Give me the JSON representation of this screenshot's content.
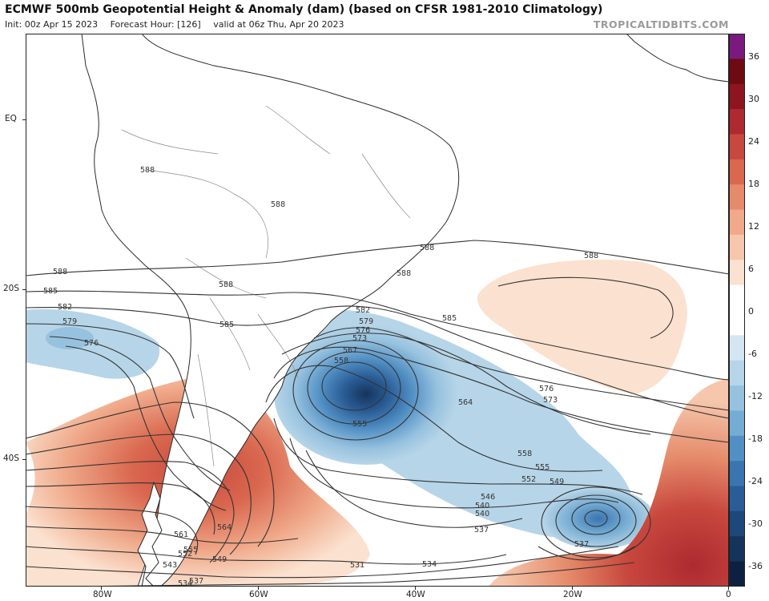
{
  "header": {
    "title": "ECMWF 500mb Geopotential Height & Anomaly (dam) (based on CFSR 1981-2010 Climatology)",
    "init": "Init: 00z Apr 15 2023",
    "forecast_hour": "Forecast Hour: [126]",
    "valid": "valid at 06z Thu, Apr 20 2023",
    "brand": "TROPICALTIDBITS.COM"
  },
  "lat_labels": [
    "EQ",
    "20S",
    "40S"
  ],
  "lon_labels": [
    "80W",
    "60W",
    "40W",
    "20W",
    "0"
  ],
  "colorbar": {
    "labels": [
      "36",
      "30",
      "24",
      "18",
      "12",
      "6",
      "0",
      "-6",
      "-12",
      "-18",
      "-24",
      "-30",
      "-36"
    ],
    "colors": [
      "#7b1a7e",
      "#6e0a12",
      "#8e1420",
      "#ad2a30",
      "#c8483e",
      "#d9684f",
      "#e58a6a",
      "#f0a98a",
      "#f6c7ac",
      "#fbe1cf",
      "#ffffff",
      "#ffffff",
      "#d3e6f1",
      "#b7d5e8",
      "#97c2df",
      "#75acd3",
      "#5290c4",
      "#3a75b0",
      "#2a5d96",
      "#1d4879",
      "#15345c",
      "#0d2040"
    ]
  },
  "contours": {
    "line_color": "#333333",
    "labels": [
      "588",
      "588",
      "588",
      "588",
      "588",
      "588",
      "588",
      "585",
      "585",
      "585",
      "582",
      "582",
      "579",
      "579",
      "576",
      "576",
      "576",
      "573",
      "573",
      "567",
      "564",
      "564",
      "561",
      "558",
      "558",
      "555",
      "555",
      "555",
      "552",
      "552",
      "549",
      "549",
      "546",
      "543",
      "540",
      "540",
      "537",
      "537",
      "537",
      "534",
      "534",
      "531"
    ]
  },
  "anomaly": {
    "positive_color": "#e58a6a",
    "negative_color": "#3a75b0"
  }
}
